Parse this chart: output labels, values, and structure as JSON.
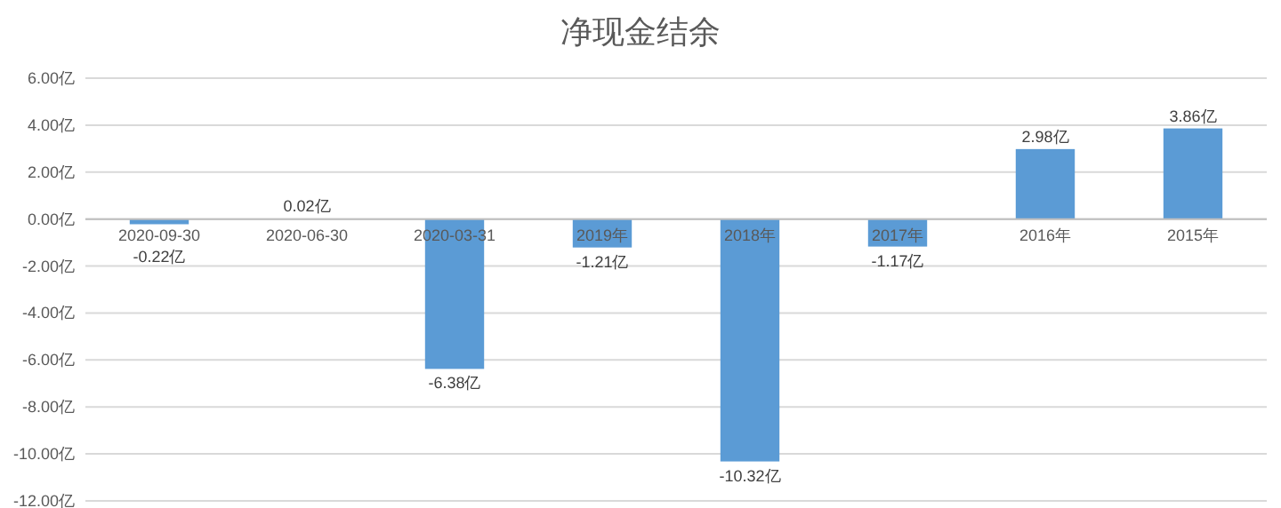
{
  "chart_data": {
    "type": "bar",
    "title": "净现金结余",
    "categories": [
      "2020-09-30",
      "2020-06-30",
      "2020-03-31",
      "2019年",
      "2018年",
      "2017年",
      "2016年",
      "2015年"
    ],
    "values": [
      -0.22,
      0.02,
      -6.38,
      -1.21,
      -10.32,
      -1.17,
      2.98,
      3.86
    ],
    "value_labels": [
      "-0.22亿",
      "0.02亿",
      "-6.38亿",
      "-1.21亿",
      "-10.32亿",
      "-1.17亿",
      "2.98亿",
      "3.86亿"
    ],
    "color": "#5b9bd5",
    "ylim": [
      -12,
      6
    ],
    "yticks": [
      {
        "value": 6,
        "label": "6.00亿"
      },
      {
        "value": 4,
        "label": "4.00亿"
      },
      {
        "value": 2,
        "label": "2.00亿"
      },
      {
        "value": 0,
        "label": "0.00亿"
      },
      {
        "value": -2,
        "label": "-2.00亿"
      },
      {
        "value": -4,
        "label": "-4.00亿"
      },
      {
        "value": -6,
        "label": "-6.00亿"
      },
      {
        "value": -8,
        "label": "-8.00亿"
      },
      {
        "value": -10,
        "label": "-10.00亿"
      },
      {
        "value": -12,
        "label": "-12.00亿"
      }
    ],
    "grid": "y"
  }
}
